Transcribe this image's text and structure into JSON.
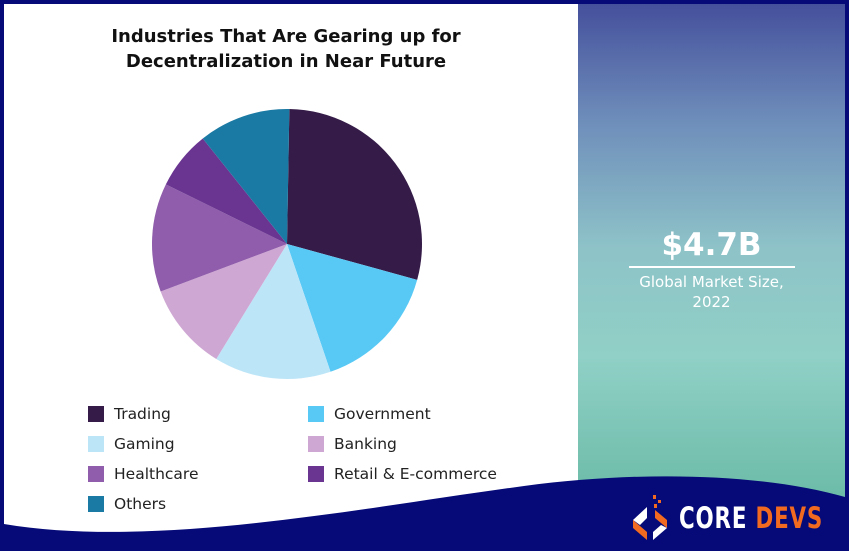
{
  "chart_data": {
    "type": "pie",
    "title": "Industries That Are Gearing up for Decentralization in Near Future",
    "title_lines": [
      "Industries That Are Gearing up for",
      "Decentralization in Near Future"
    ],
    "categories": [
      "Trading",
      "Government",
      "Gaming",
      "Banking",
      "Healthcare",
      "Retail & E-commerce",
      "Others"
    ],
    "values": [
      29,
      15.5,
      14,
      10.5,
      13,
      7,
      11
    ],
    "colors": [
      "#351c48",
      "#58c9f5",
      "#bde5f8",
      "#cfa7d3",
      "#8f5dab",
      "#6a3591",
      "#1b7aa3"
    ],
    "legend": "bottom",
    "start_angle_deg": 1
  },
  "stat": {
    "value": "$4.7B",
    "label_line1": "Global Market Size,",
    "label_line2": "2022"
  },
  "brand": {
    "word1": "CORE",
    "word2": "DEVS",
    "colors": {
      "navy": "#050a78",
      "orange": "#f26a1f"
    }
  }
}
